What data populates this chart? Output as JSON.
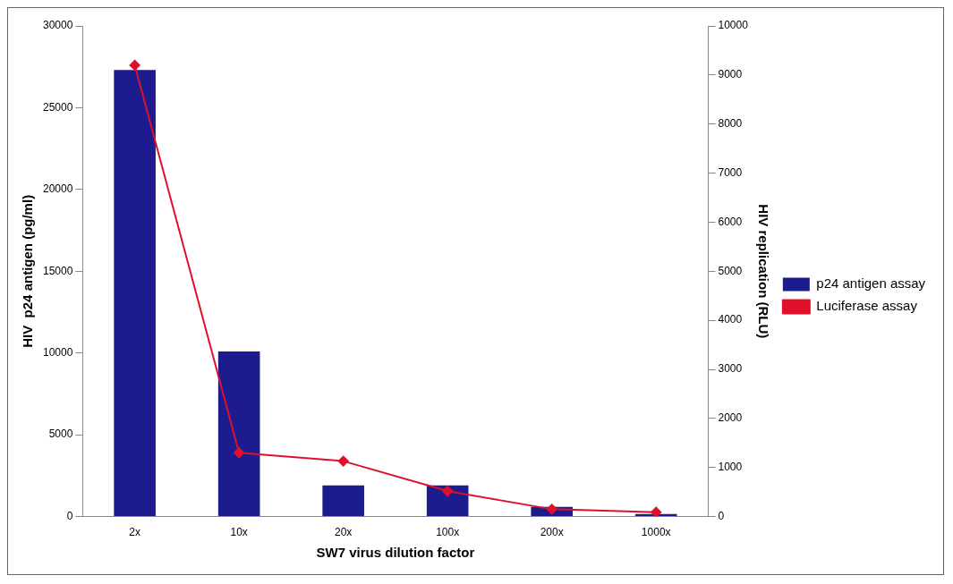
{
  "chart_data": {
    "type": "bar",
    "xlabel": "SW7 virus dilution factor",
    "ylabel": "HIV  p24 antigen (pg/ml)",
    "y2label": "HIV replication (RLU)",
    "categories": [
      "2x",
      "10x",
      "20x",
      "100x",
      "200x",
      "1000x"
    ],
    "series": [
      {
        "name": "p24 antigen assay",
        "color": "#1c1c8e",
        "values": [
          27300,
          10100,
          1900,
          1900,
          600,
          150
        ]
      },
      {
        "name": "Luciferase assay",
        "type": "line",
        "axis": "y2",
        "color": "#e0102a",
        "marker": "diamond",
        "values": [
          9200,
          1300,
          1130,
          520,
          150,
          90
        ]
      }
    ],
    "ylim": [
      0,
      30000
    ],
    "yticks": [
      0,
      5000,
      10000,
      15000,
      20000,
      25000,
      30000
    ],
    "y2lim": [
      0,
      10000
    ],
    "y2ticks": [
      0,
      1000,
      2000,
      3000,
      4000,
      5000,
      6000,
      7000,
      8000,
      9000,
      10000
    ],
    "grid": false,
    "legend": "right"
  }
}
